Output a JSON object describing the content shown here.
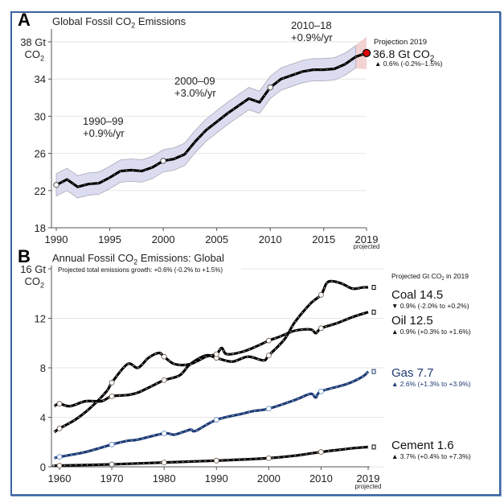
{
  "chart_data": [
    {
      "type": "line",
      "panel_label": "A",
      "title": "Global Fossil CO₂ Emissions",
      "ylabel_top": "38 Gt",
      "ylabel_unit": "CO₂",
      "xlim": [
        1990,
        2019
      ],
      "ylim": [
        18,
        38
      ],
      "yticks": [
        18,
        22,
        26,
        30,
        34,
        38
      ],
      "ytick_labels": [
        "18",
        "22",
        "26",
        "30",
        "34",
        ""
      ],
      "xticks": [
        1990,
        1995,
        2000,
        2005,
        2010,
        2015,
        2019
      ],
      "xtick_labels": [
        "1990",
        "1995",
        "2000",
        "2005",
        "2010",
        "2015",
        "2019"
      ],
      "x_projected_label": "projected",
      "grid": true,
      "series": [
        {
          "name": "Global fossil CO2",
          "color": "#000000",
          "x": [
            1990,
            1991,
            1992,
            1993,
            1994,
            1995,
            1996,
            1997,
            1998,
            1999,
            2000,
            2001,
            2002,
            2003,
            2004,
            2005,
            2006,
            2007,
            2008,
            2009,
            2010,
            2011,
            2012,
            2013,
            2014,
            2015,
            2016,
            2017,
            2018,
            2019
          ],
          "y": [
            22.6,
            23.2,
            22.4,
            22.7,
            22.8,
            23.4,
            24.1,
            24.2,
            24.1,
            24.5,
            25.2,
            25.4,
            25.9,
            27.3,
            28.5,
            29.4,
            30.3,
            31.1,
            31.9,
            31.5,
            33.1,
            34.0,
            34.4,
            34.8,
            35.0,
            35.0,
            35.1,
            35.6,
            36.4,
            36.8
          ],
          "uncertainty": 1.2,
          "markers_at": [
            1990,
            2000,
            2010
          ]
        }
      ],
      "band_color": "#dcdcf0",
      "projection_band_color": "#f3d2d2",
      "annotations": [
        {
          "lines": [
            "1990–99",
            "+0.9%/yr"
          ]
        },
        {
          "lines": [
            "2000–09",
            "+3.0%/yr"
          ]
        },
        {
          "lines": [
            "2010–18",
            "+0.9%/yr"
          ]
        }
      ],
      "projection": {
        "label": "Projection 2019",
        "value": "36.8 Gt CO₂",
        "change": "▲ 0.6% (-0.2%–1.5%)",
        "marker_color": "#e00000"
      }
    },
    {
      "type": "line",
      "panel_label": "B",
      "title": "Annual Fossil CO₂ Emissions: Global",
      "subtitle": "Projected total emissions growth: +0.6% (-0.2% to +1.5%)",
      "ylabel_top": "16 Gt",
      "ylabel_unit": "CO₂",
      "xlim": [
        1959,
        2019
      ],
      "ylim": [
        0,
        16
      ],
      "yticks": [
        0,
        4,
        8,
        12,
        16
      ],
      "ytick_labels": [
        "0",
        "4",
        "8",
        "12",
        ""
      ],
      "xticks": [
        1960,
        1970,
        1980,
        1990,
        2000,
        2010,
        2019
      ],
      "xtick_labels": [
        "1960",
        "1970",
        "1980",
        "1990",
        "2000",
        "2010",
        "2019"
      ],
      "x_projected_label": "projected",
      "grid": true,
      "legend_header": "Projected Gt CO₂ in 2019",
      "series": [
        {
          "name": "Coal",
          "legend_value": "Coal 14.5",
          "legend_change": "▼ 0.9% (-2.0% to +0.2%)",
          "color": "#000000",
          "text_color": "#111111",
          "x": [
            1959,
            1960,
            1962,
            1965,
            1968,
            1970,
            1973,
            1975,
            1978,
            1980,
            1983,
            1985,
            1988,
            1990,
            1993,
            1996,
            1999,
            2000,
            2003,
            2005,
            2008,
            2010,
            2011,
            2012,
            2014,
            2016,
            2018,
            2019
          ],
          "y": [
            4.9,
            5.1,
            4.9,
            5.3,
            5.3,
            5.7,
            5.8,
            6.0,
            6.6,
            7.0,
            7.4,
            8.3,
            9.0,
            8.8,
            8.5,
            8.9,
            8.6,
            9.0,
            10.3,
            11.7,
            13.2,
            13.9,
            14.8,
            15.0,
            14.8,
            14.4,
            14.5,
            14.5
          ],
          "markers_at": [
            1960,
            1970,
            1980,
            1990,
            2000,
            2010
          ]
        },
        {
          "name": "Oil",
          "legend_value": "Oil 12.5",
          "legend_change": "▲ 0.9% (+0.3% to +1.6%)",
          "color": "#000000",
          "text_color": "#111111",
          "x": [
            1959,
            1960,
            1963,
            1966,
            1969,
            1970,
            1973,
            1975,
            1977,
            1979,
            1980,
            1982,
            1985,
            1988,
            1990,
            1991,
            1992,
            1995,
            1998,
            2000,
            2002,
            2005,
            2008,
            2009,
            2010,
            2013,
            2016,
            2019
          ],
          "y": [
            2.8,
            3.1,
            3.8,
            4.8,
            6.1,
            6.8,
            8.3,
            8.0,
            8.8,
            9.2,
            8.9,
            8.3,
            8.3,
            8.9,
            9.1,
            9.6,
            9.1,
            9.3,
            9.8,
            10.2,
            10.5,
            11.0,
            11.1,
            10.8,
            11.2,
            11.6,
            12.1,
            12.5
          ],
          "markers_at": [
            1960,
            1970,
            1980,
            1990,
            2000,
            2010
          ]
        },
        {
          "name": "Gas",
          "legend_value": "Gas 7.7",
          "legend_change": "▲ 2.6% (+1.3% to +3.9%)",
          "color": "#1d3a72",
          "text_color": "#1d3a72",
          "x": [
            1959,
            1960,
            1965,
            1970,
            1973,
            1975,
            1980,
            1982,
            1985,
            1986,
            1990,
            1995,
            1997,
            2000,
            2005,
            2008,
            2009,
            2010,
            2015,
            2018,
            2019
          ],
          "y": [
            0.7,
            0.8,
            1.2,
            1.8,
            2.1,
            2.2,
            2.7,
            2.6,
            3.0,
            2.9,
            3.8,
            4.3,
            4.5,
            4.7,
            5.4,
            5.9,
            5.6,
            6.1,
            6.7,
            7.3,
            7.7
          ],
          "markers_at": [
            1960,
            1970,
            1980,
            1990,
            2000,
            2010
          ]
        },
        {
          "name": "Cement",
          "legend_value": "Cement 1.6",
          "legend_change": "▲ 3.7% (+0.4% to +7.3%)",
          "color": "#000000",
          "text_color": "#111111",
          "x": [
            1959,
            1960,
            1970,
            1980,
            1990,
            2000,
            2005,
            2010,
            2014,
            2016,
            2019
          ],
          "y": [
            0.1,
            0.1,
            0.2,
            0.35,
            0.5,
            0.7,
            0.9,
            1.2,
            1.4,
            1.5,
            1.6
          ],
          "markers_at": [
            1960,
            1970,
            1980,
            1990,
            2000,
            2010
          ]
        }
      ]
    }
  ]
}
